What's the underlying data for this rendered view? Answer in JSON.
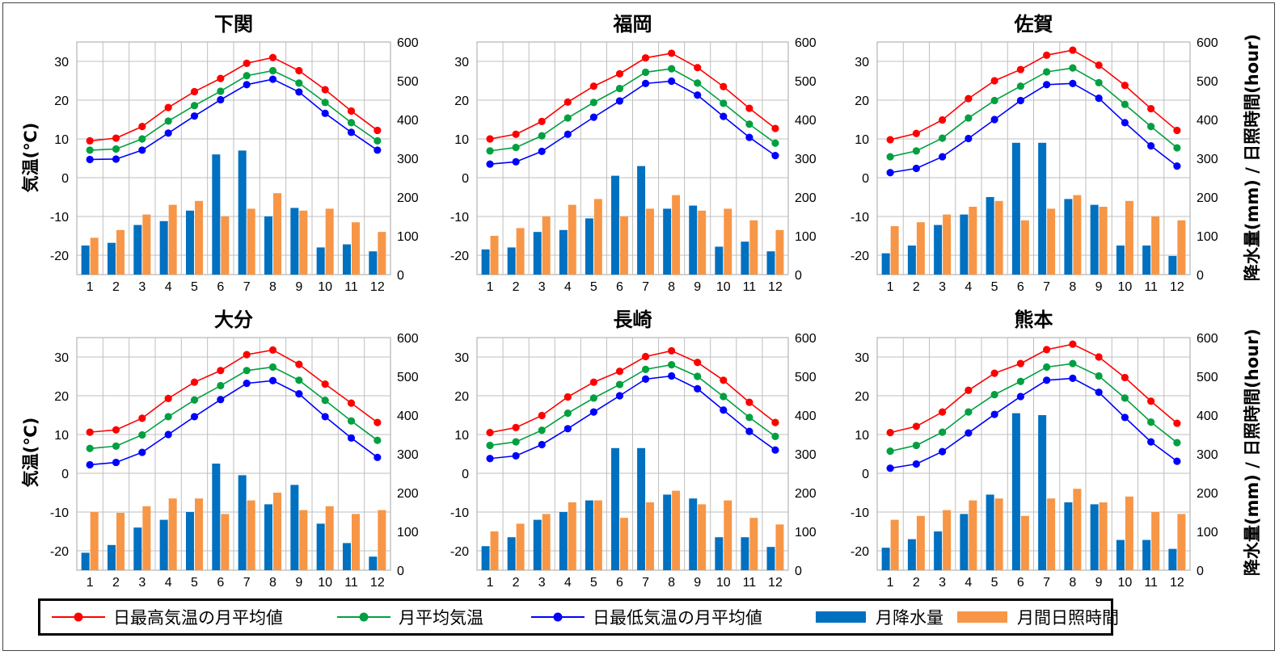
{
  "axes": {
    "left_label": "気温(℃)",
    "right_label": "降水量(mm) / 日照時間(hour)"
  },
  "legend": {
    "max_label": "日最高気温の月平均値",
    "avg_label": "月平均気温",
    "min_label": "日最低気温の月平均値",
    "precip_label": "月降水量",
    "sun_label": "月間日照時間"
  },
  "colors": {
    "max": "#ff0000",
    "avg": "#00a040",
    "min": "#0000ff",
    "precip": "#0070c0",
    "sun": "#f79646",
    "grid": "#bfbfbf"
  },
  "chart_data": [
    {
      "type": "bar",
      "title": "下関",
      "categories": [
        "1",
        "2",
        "3",
        "4",
        "5",
        "6",
        "7",
        "8",
        "9",
        "10",
        "11",
        "12"
      ],
      "temp_ylim": [
        -25,
        35
      ],
      "temp_ticks": [
        -20,
        -10,
        0,
        10,
        20,
        30
      ],
      "right_ylim": [
        0,
        600
      ],
      "right_ticks": [
        0,
        100,
        200,
        300,
        400,
        500,
        600
      ],
      "series": [
        {
          "name": "日最高気温の月平均値",
          "axis": "left",
          "values": [
            9.5,
            10.2,
            13.2,
            18.1,
            22.2,
            25.6,
            29.5,
            31.0,
            27.6,
            22.7,
            17.2,
            12.2
          ]
        },
        {
          "name": "月平均気温",
          "axis": "left",
          "values": [
            7.1,
            7.4,
            10.0,
            14.6,
            18.6,
            22.3,
            26.3,
            27.6,
            24.4,
            19.4,
            14.2,
            9.5
          ]
        },
        {
          "name": "日最低気温の月平均値",
          "axis": "left",
          "values": [
            4.7,
            4.8,
            7.1,
            11.5,
            15.9,
            20.1,
            24.0,
            25.4,
            22.1,
            16.6,
            11.7,
            7.1
          ]
        },
        {
          "name": "月降水量",
          "axis": "right",
          "values": [
            75,
            82,
            128,
            138,
            165,
            310,
            320,
            150,
            172,
            70,
            78,
            60
          ]
        },
        {
          "name": "月間日照時間",
          "axis": "right",
          "values": [
            95,
            115,
            155,
            180,
            190,
            150,
            170,
            210,
            165,
            170,
            135,
            110
          ]
        }
      ]
    },
    {
      "type": "bar",
      "title": "福岡",
      "categories": [
        "1",
        "2",
        "3",
        "4",
        "5",
        "6",
        "7",
        "8",
        "9",
        "10",
        "11",
        "12"
      ],
      "temp_ylim": [
        -25,
        35
      ],
      "temp_ticks": [
        -20,
        -10,
        0,
        10,
        20,
        30
      ],
      "right_ylim": [
        0,
        600
      ],
      "right_ticks": [
        0,
        100,
        200,
        300,
        400,
        500,
        600
      ],
      "series": [
        {
          "name": "日最高気温の月平均値",
          "axis": "left",
          "values": [
            10.0,
            11.2,
            14.5,
            19.5,
            23.6,
            26.8,
            30.9,
            32.1,
            28.4,
            23.5,
            17.9,
            12.7
          ]
        },
        {
          "name": "月平均気温",
          "axis": "left",
          "values": [
            6.9,
            7.8,
            10.8,
            15.4,
            19.4,
            23.0,
            27.2,
            28.1,
            24.4,
            19.2,
            13.8,
            8.9
          ]
        },
        {
          "name": "日最低気温の月平均値",
          "axis": "left",
          "values": [
            3.5,
            4.1,
            6.8,
            11.2,
            15.6,
            19.8,
            24.3,
            24.9,
            21.3,
            15.8,
            10.4,
            5.7
          ]
        },
        {
          "name": "月降水量",
          "axis": "right",
          "values": [
            65,
            70,
            110,
            115,
            145,
            255,
            280,
            170,
            178,
            72,
            85,
            60
          ]
        },
        {
          "name": "月間日照時間",
          "axis": "right",
          "values": [
            100,
            120,
            150,
            180,
            195,
            150,
            170,
            205,
            165,
            170,
            140,
            115
          ]
        }
      ]
    },
    {
      "type": "bar",
      "title": "佐賀",
      "categories": [
        "1",
        "2",
        "3",
        "4",
        "5",
        "6",
        "7",
        "8",
        "9",
        "10",
        "11",
        "12"
      ],
      "temp_ylim": [
        -25,
        35
      ],
      "temp_ticks": [
        -20,
        -10,
        0,
        10,
        20,
        30
      ],
      "right_ylim": [
        0,
        600
      ],
      "right_ticks": [
        0,
        100,
        200,
        300,
        400,
        500,
        600
      ],
      "series": [
        {
          "name": "日最高気温の月平均値",
          "axis": "left",
          "values": [
            9.8,
            11.4,
            14.9,
            20.4,
            25.0,
            27.9,
            31.6,
            32.9,
            29.0,
            23.8,
            17.8,
            12.2
          ]
        },
        {
          "name": "月平均気温",
          "axis": "left",
          "values": [
            5.4,
            6.9,
            10.2,
            15.4,
            19.9,
            23.6,
            27.3,
            28.3,
            24.5,
            18.9,
            13.2,
            7.7
          ]
        },
        {
          "name": "日最低気温の月平均値",
          "axis": "left",
          "values": [
            1.3,
            2.4,
            5.4,
            10.1,
            15.0,
            19.9,
            24.0,
            24.3,
            20.5,
            14.2,
            8.2,
            3.0
          ]
        },
        {
          "name": "月降水量",
          "axis": "right",
          "values": [
            55,
            75,
            128,
            155,
            200,
            340,
            340,
            195,
            180,
            75,
            75,
            48
          ]
        },
        {
          "name": "月間日照時間",
          "axis": "right",
          "values": [
            125,
            135,
            155,
            175,
            190,
            140,
            170,
            205,
            175,
            190,
            150,
            140
          ]
        }
      ]
    },
    {
      "type": "bar",
      "title": "大分",
      "categories": [
        "1",
        "2",
        "3",
        "4",
        "5",
        "6",
        "7",
        "8",
        "9",
        "10",
        "11",
        "12"
      ],
      "temp_ylim": [
        -25,
        35
      ],
      "temp_ticks": [
        -20,
        -10,
        0,
        10,
        20,
        30
      ],
      "right_ylim": [
        0,
        600
      ],
      "right_ticks": [
        0,
        100,
        200,
        300,
        400,
        500,
        600
      ],
      "series": [
        {
          "name": "日最高気温の月平均値",
          "axis": "left",
          "values": [
            10.6,
            11.2,
            14.2,
            19.3,
            23.5,
            26.5,
            30.6,
            31.8,
            28.1,
            23.0,
            18.1,
            13.1
          ]
        },
        {
          "name": "月平均気温",
          "axis": "left",
          "values": [
            6.4,
            7.0,
            9.9,
            14.6,
            18.9,
            22.6,
            26.5,
            27.4,
            24.0,
            18.8,
            13.5,
            8.5
          ]
        },
        {
          "name": "日最低気温の月平均値",
          "axis": "left",
          "values": [
            2.2,
            2.8,
            5.4,
            10.0,
            14.6,
            19.0,
            23.2,
            23.9,
            20.5,
            14.6,
            9.1,
            4.1
          ]
        },
        {
          "name": "月降水量",
          "axis": "right",
          "values": [
            45,
            65,
            110,
            130,
            150,
            275,
            245,
            170,
            220,
            120,
            70,
            35
          ]
        },
        {
          "name": "月間日照時間",
          "axis": "right",
          "values": [
            150,
            148,
            165,
            185,
            185,
            145,
            180,
            200,
            155,
            165,
            145,
            155
          ]
        }
      ]
    },
    {
      "type": "bar",
      "title": "長崎",
      "categories": [
        "1",
        "2",
        "3",
        "4",
        "5",
        "6",
        "7",
        "8",
        "9",
        "10",
        "11",
        "12"
      ],
      "temp_ylim": [
        -25,
        35
      ],
      "temp_ticks": [
        -20,
        -10,
        0,
        10,
        20,
        30
      ],
      "right_ylim": [
        0,
        600
      ],
      "right_ticks": [
        0,
        100,
        200,
        300,
        400,
        500,
        600
      ],
      "series": [
        {
          "name": "日最高気温の月平均値",
          "axis": "left",
          "values": [
            10.5,
            11.8,
            14.9,
            19.7,
            23.5,
            26.3,
            30.1,
            31.6,
            28.6,
            24.0,
            18.3,
            13.1
          ]
        },
        {
          "name": "月平均気温",
          "axis": "left",
          "values": [
            7.2,
            8.1,
            11.1,
            15.5,
            19.4,
            22.9,
            26.8,
            28.0,
            25.0,
            19.8,
            14.4,
            9.5
          ]
        },
        {
          "name": "日最低気温の月平均値",
          "axis": "left",
          "values": [
            3.8,
            4.5,
            7.4,
            11.5,
            15.8,
            20.0,
            24.3,
            25.1,
            21.8,
            16.3,
            10.8,
            6.0
          ]
        },
        {
          "name": "月降水量",
          "axis": "right",
          "values": [
            62,
            85,
            130,
            150,
            180,
            315,
            315,
            195,
            185,
            85,
            85,
            60
          ]
        },
        {
          "name": "月間日照時間",
          "axis": "right",
          "values": [
            100,
            120,
            145,
            175,
            180,
            135,
            175,
            205,
            170,
            180,
            135,
            118
          ]
        }
      ]
    },
    {
      "type": "bar",
      "title": "熊本",
      "categories": [
        "1",
        "2",
        "3",
        "4",
        "5",
        "6",
        "7",
        "8",
        "9",
        "10",
        "11",
        "12"
      ],
      "temp_ylim": [
        -25,
        35
      ],
      "temp_ticks": [
        -20,
        -10,
        0,
        10,
        20,
        30
      ],
      "right_ylim": [
        0,
        600
      ],
      "right_ticks": [
        0,
        100,
        200,
        300,
        400,
        500,
        600
      ],
      "series": [
        {
          "name": "日最高気温の月平均値",
          "axis": "left",
          "values": [
            10.5,
            12.1,
            15.8,
            21.4,
            25.8,
            28.3,
            31.9,
            33.3,
            30.0,
            24.7,
            18.6,
            12.9
          ]
        },
        {
          "name": "月平均気温",
          "axis": "left",
          "values": [
            5.7,
            7.2,
            10.6,
            15.8,
            20.3,
            23.7,
            27.4,
            28.3,
            25.1,
            19.4,
            13.2,
            7.9
          ]
        },
        {
          "name": "日最低気温の月平均値",
          "axis": "left",
          "values": [
            1.3,
            2.4,
            5.6,
            10.4,
            15.2,
            19.8,
            24.0,
            24.5,
            20.9,
            14.4,
            8.1,
            3.1
          ]
        },
        {
          "name": "月降水量",
          "axis": "right",
          "values": [
            58,
            80,
            100,
            145,
            195,
            405,
            400,
            175,
            170,
            78,
            78,
            55
          ]
        },
        {
          "name": "月間日照時間",
          "axis": "right",
          "values": [
            130,
            140,
            155,
            180,
            185,
            140,
            185,
            210,
            175,
            190,
            150,
            145
          ]
        }
      ]
    }
  ]
}
